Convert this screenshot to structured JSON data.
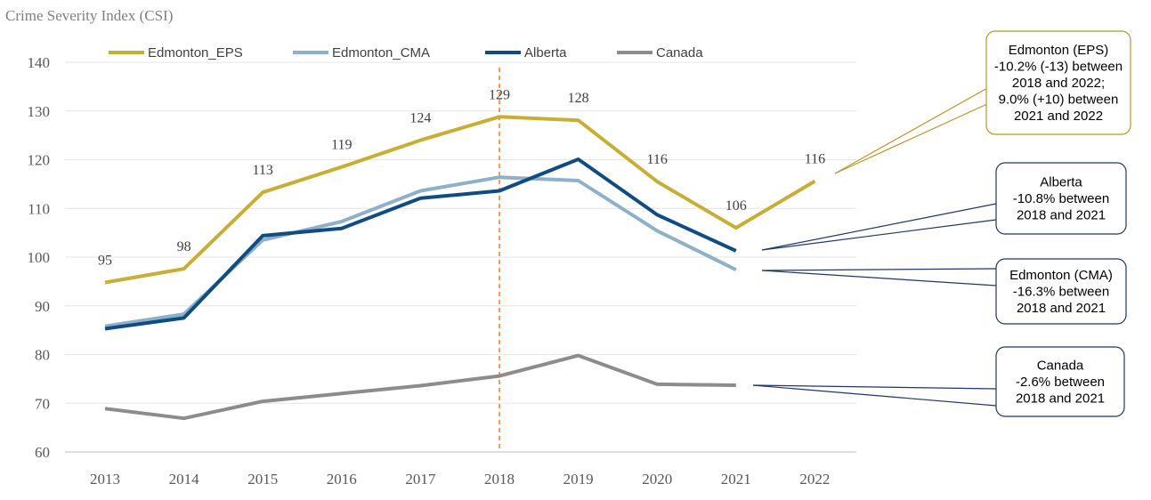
{
  "chart_data": {
    "type": "line",
    "title": "Crime Severity Index (CSI)",
    "xlabel": "",
    "ylabel": "",
    "ylim": [
      60,
      140
    ],
    "yticks": [
      60,
      70,
      80,
      90,
      100,
      110,
      120,
      130,
      140
    ],
    "categories": [
      "2013",
      "2014",
      "2015",
      "2016",
      "2017",
      "2018",
      "2019",
      "2020",
      "2021",
      "2022"
    ],
    "grid": true,
    "legend": "top",
    "reference_line": {
      "x": "2018",
      "color": "#ED7D31",
      "style": "dashed"
    },
    "series": [
      {
        "name": "Edmonton_EPS",
        "color": "#C9AE35",
        "values": [
          94.8,
          97.6,
          113.3,
          118.5,
          124.0,
          128.8,
          128.1,
          115.5,
          106.0,
          115.6
        ],
        "data_labels": [
          "95",
          "98",
          "113",
          "119",
          "124",
          "129",
          "128",
          "116",
          "106",
          "116"
        ]
      },
      {
        "name": "Edmonton_CMA",
        "color": "#8EB0C8",
        "values": [
          85.8,
          88.3,
          103.5,
          107.3,
          113.6,
          116.4,
          115.7,
          105.4,
          97.4,
          null
        ]
      },
      {
        "name": "Alberta",
        "color": "#0F4C81",
        "values": [
          85.3,
          87.5,
          104.4,
          105.9,
          112.1,
          113.6,
          120.1,
          108.7,
          101.3,
          null
        ]
      },
      {
        "name": "Canada",
        "color": "#8C8C8C",
        "values": [
          68.9,
          66.9,
          70.4,
          72.0,
          73.6,
          75.6,
          79.8,
          73.9,
          73.7,
          null
        ]
      }
    ],
    "annotations": [
      {
        "series": "Edmonton_EPS",
        "border_color": "#B8962E",
        "lines": [
          "Edmonton (EPS)",
          "-10.2% (-13) between",
          "2018 and 2022;",
          "9.0% (+10) between",
          "2021 and 2022"
        ]
      },
      {
        "series": "Alberta",
        "border_color": "#1F3864",
        "lines": [
          "Alberta",
          "-10.8% between",
          "2018 and 2021"
        ]
      },
      {
        "series": "Edmonton_CMA",
        "border_color": "#1F3864",
        "lines": [
          "Edmonton (CMA)",
          "-16.3% between",
          "2018 and 2021"
        ]
      },
      {
        "series": "Canada",
        "border_color": "#1F3864",
        "lines": [
          "Canada",
          "-2.6% between",
          "2018 and 2021"
        ]
      }
    ]
  }
}
